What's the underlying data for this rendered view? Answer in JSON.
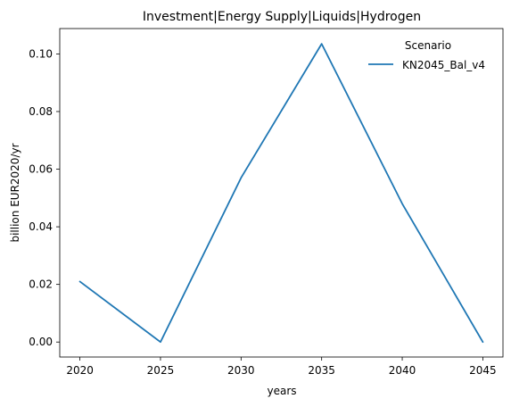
{
  "chart_data": {
    "type": "line",
    "title": "Investment|Energy Supply|Liquids|Hydrogen",
    "xlabel": "years",
    "ylabel": "billion EUR2020/yr",
    "x": [
      2020,
      2025,
      2030,
      2035,
      2040,
      2045
    ],
    "x_ticks": [
      "2020",
      "2025",
      "2030",
      "2035",
      "2040",
      "2045"
    ],
    "y_ticks": [
      "0.00",
      "0.02",
      "0.04",
      "0.06",
      "0.08",
      "0.10"
    ],
    "xlim": [
      2018.75,
      2046.25
    ],
    "ylim": [
      -0.0052,
      0.1088
    ],
    "grid": false,
    "legend": {
      "title": "Scenario",
      "placement": "top-right"
    },
    "series": [
      {
        "name": "KN2045_Bal_v4",
        "color": "#1f77b4",
        "values": [
          0.021,
          0.0,
          0.057,
          0.1035,
          0.048,
          0.0
        ]
      }
    ]
  }
}
